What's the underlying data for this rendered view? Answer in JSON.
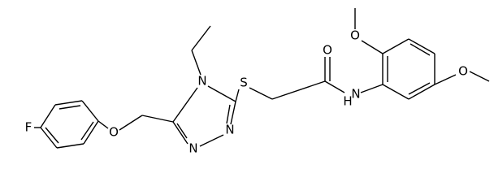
{
  "atoms": [
    {
      "label": "F"
    },
    {
      "label": "O"
    },
    {
      "label": "N"
    },
    {
      "label": "N"
    },
    {
      "label": "N"
    },
    {
      "label": "S"
    },
    {
      "label": "O"
    },
    {
      "label": "N"
    },
    {
      "label": "H"
    },
    {
      "label": "O"
    },
    {
      "label": "O"
    }
  ]
}
